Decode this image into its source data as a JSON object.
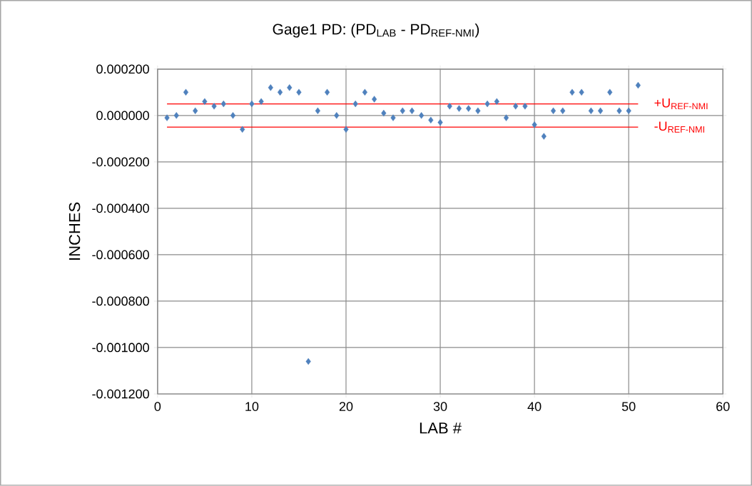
{
  "chart_data": {
    "type": "scatter",
    "title": "Gage1  PD:  (PD$_{LAB}$ - PD$_{REF-NMI}$)",
    "xlabel": "LAB #",
    "ylabel": "INCHES",
    "x": [
      1,
      2,
      3,
      4,
      5,
      6,
      7,
      8,
      9,
      10,
      11,
      12,
      13,
      14,
      15,
      16,
      17,
      18,
      19,
      20,
      21,
      22,
      23,
      24,
      25,
      26,
      27,
      28,
      29,
      30,
      31,
      32,
      33,
      34,
      35,
      36,
      37,
      38,
      39,
      40,
      41,
      42,
      43,
      44,
      45,
      46,
      47,
      48,
      49,
      50,
      51
    ],
    "series": [
      {
        "color": "#4f81bd",
        "values": [
          -1e-05,
          0.0,
          0.0001,
          2e-05,
          6e-05,
          4e-05,
          5e-05,
          0.0,
          -6e-05,
          5e-05,
          6e-05,
          0.00012,
          0.0001,
          0.00012,
          0.0001,
          -0.00106,
          2e-05,
          0.0001,
          0.0,
          -6e-05,
          5e-05,
          0.0001,
          7e-05,
          1e-05,
          -1e-05,
          2e-05,
          2e-05,
          0.0,
          -2e-05,
          -3e-05,
          4e-05,
          3e-05,
          3e-05,
          2e-05,
          5e-05,
          6e-05,
          -1e-05,
          4e-05,
          4e-05,
          -4e-05,
          -9e-05,
          2e-05,
          2e-05,
          0.0001,
          0.0001,
          2e-05,
          2e-05,
          0.0001,
          2e-05,
          2e-05,
          0.00013
        ]
      }
    ],
    "xlim": [
      0,
      60
    ],
    "xticks": [
      0,
      10,
      20,
      30,
      40,
      50,
      60
    ],
    "ylim": [
      -0.0012,
      0.0002
    ],
    "yticks": [
      {
        "value": -0.0012,
        "label": "-0.001200"
      },
      {
        "value": -0.001,
        "label": "-0.001000"
      },
      {
        "value": -0.0008,
        "label": "-0.000800"
      },
      {
        "value": -0.0006,
        "label": "-0.000600"
      },
      {
        "value": -0.0004,
        "label": "-0.000400"
      },
      {
        "value": -0.0002,
        "label": "-0.000200"
      },
      {
        "value": 0,
        "label": "0.000000"
      },
      {
        "value": 0.0002,
        "label": "0.000200"
      }
    ],
    "ref_lines": [
      {
        "axis": "y",
        "value": 5e-05,
        "label": "+U$_{REF-NMI}$",
        "color": "#ff0000"
      },
      {
        "axis": "y",
        "value": -5e-05,
        "label": "-U$_{REF-NMI}$",
        "color": "#ff0000"
      }
    ],
    "grid": true,
    "marker": "diamond"
  }
}
